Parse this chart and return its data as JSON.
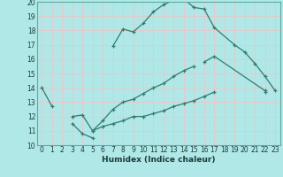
{
  "title": "",
  "xlabel": "Humidex (Indice chaleur)",
  "bg_color": "#b0e8e8",
  "grid_color": "#e8c8c8",
  "line_color": "#2e7d6e",
  "xlim": [
    -0.5,
    23.5
  ],
  "ylim": [
    10,
    20
  ],
  "xticks": [
    0,
    1,
    2,
    3,
    4,
    5,
    6,
    7,
    8,
    9,
    10,
    11,
    12,
    13,
    14,
    15,
    16,
    17,
    18,
    19,
    20,
    21,
    22,
    23
  ],
  "yticks": [
    10,
    11,
    12,
    13,
    14,
    15,
    16,
    17,
    18,
    19,
    20
  ],
  "curve1_x": [
    0,
    1,
    3,
    4,
    5,
    7,
    8,
    9,
    10,
    11,
    12,
    13,
    14,
    15,
    16,
    17,
    19,
    20,
    21,
    22,
    23
  ],
  "curve1_y": [
    14.0,
    12.7,
    11.5,
    10.8,
    10.5,
    16.9,
    18.1,
    17.9,
    18.5,
    19.3,
    19.8,
    20.1,
    20.2,
    19.6,
    19.5,
    18.2,
    17.0,
    16.5,
    15.7,
    14.8,
    13.8
  ],
  "curve1_breaks": [
    1,
    5
  ],
  "curve2_x": [
    3,
    4,
    5,
    6,
    7,
    8,
    9,
    10,
    11,
    12,
    13,
    14,
    15,
    16,
    17,
    22
  ],
  "curve2_y": [
    12.0,
    12.1,
    11.0,
    11.7,
    12.5,
    13.0,
    13.2,
    13.6,
    14.0,
    14.3,
    14.8,
    15.2,
    15.5,
    15.8,
    16.2,
    13.8
  ],
  "curve2_breaks": [
    5
  ],
  "curve3_x": [
    5,
    6,
    7,
    8,
    9,
    10,
    11,
    12,
    13,
    14,
    15,
    16,
    17,
    22
  ],
  "curve3_y": [
    11.0,
    11.3,
    11.5,
    11.7,
    12.0,
    12.0,
    12.2,
    12.4,
    12.7,
    12.9,
    13.1,
    13.4,
    13.7,
    13.7
  ]
}
